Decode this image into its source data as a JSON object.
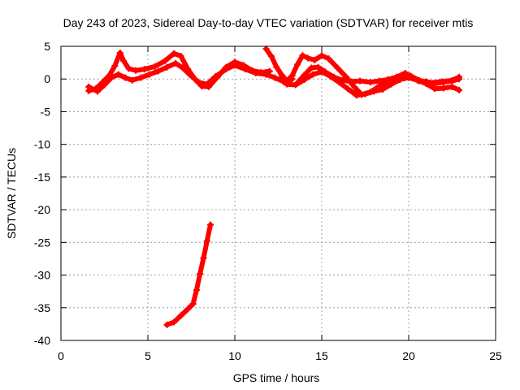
{
  "chart_data": {
    "type": "scatter",
    "title": "Day 243 of 2023, Sidereal Day-to-day VTEC variation (SDTVAR) for receiver mtis",
    "xlabel": "GPS time / hours",
    "ylabel": "SDTVAR / TECUs",
    "xlim": [
      0,
      25
    ],
    "ylim": [
      -40,
      5
    ],
    "x_ticks": [
      0,
      5,
      10,
      15,
      20,
      25
    ],
    "y_ticks": [
      5,
      0,
      -5,
      -10,
      -15,
      -20,
      -25,
      -30,
      -35,
      -40
    ],
    "grid": true,
    "marker_color": "#ff0000",
    "series": [
      {
        "name": "track-1",
        "points": [
          [
            1.6,
            -1.8
          ],
          [
            2.0,
            -1.5
          ],
          [
            2.4,
            -0.5
          ],
          [
            2.8,
            0.6
          ],
          [
            3.1,
            2.0
          ],
          [
            3.4,
            4.0
          ],
          [
            3.6,
            2.8
          ],
          [
            3.9,
            1.6
          ],
          [
            4.3,
            1.3
          ],
          [
            4.8,
            1.5
          ],
          [
            5.4,
            1.9
          ],
          [
            6.0,
            2.8
          ],
          [
            6.5,
            3.9
          ],
          [
            6.9,
            3.5
          ],
          [
            7.3,
            1.5
          ],
          [
            7.7,
            0.0
          ],
          [
            8.1,
            -1.1
          ],
          [
            8.5,
            -1.2
          ],
          [
            9.0,
            0.3
          ],
          [
            9.5,
            1.8
          ],
          [
            10.0,
            2.6
          ],
          [
            10.5,
            2.1
          ],
          [
            11.0,
            1.3
          ],
          [
            11.5,
            1.0
          ],
          [
            12.0,
            1.2
          ]
        ]
      },
      {
        "name": "track-2",
        "points": [
          [
            1.6,
            -1.2
          ],
          [
            2.1,
            -1.9
          ],
          [
            2.5,
            -0.9
          ],
          [
            2.9,
            0.2
          ],
          [
            3.3,
            0.7
          ],
          [
            3.7,
            0.2
          ],
          [
            4.1,
            -0.2
          ],
          [
            4.6,
            0.2
          ],
          [
            5.1,
            0.7
          ],
          [
            5.6,
            1.2
          ],
          [
            6.1,
            1.8
          ],
          [
            6.6,
            2.4
          ],
          [
            7.0,
            1.7
          ],
          [
            7.4,
            0.7
          ],
          [
            7.9,
            -0.5
          ],
          [
            8.4,
            -0.8
          ],
          [
            8.9,
            0.4
          ],
          [
            9.5,
            1.5
          ],
          [
            10.0,
            2.1
          ],
          [
            10.6,
            1.5
          ],
          [
            11.2,
            0.9
          ],
          [
            11.8,
            0.7
          ],
          [
            12.3,
            0.2
          ],
          [
            12.8,
            -0.4
          ],
          [
            13.3,
            0.0
          ]
        ]
      },
      {
        "name": "track-3",
        "points": [
          [
            11.8,
            4.6
          ],
          [
            12.1,
            3.5
          ],
          [
            12.4,
            1.8
          ],
          [
            12.7,
            0.6
          ],
          [
            13.0,
            -0.3
          ],
          [
            13.3,
            0.5
          ],
          [
            13.6,
            2.2
          ],
          [
            13.9,
            3.6
          ],
          [
            14.2,
            3.2
          ],
          [
            14.6,
            2.9
          ],
          [
            15.0,
            3.6
          ],
          [
            15.4,
            3.1
          ],
          [
            15.9,
            1.7
          ],
          [
            16.4,
            0.3
          ],
          [
            16.9,
            -1.3
          ],
          [
            17.3,
            -2.4
          ],
          [
            17.8,
            -2.0
          ],
          [
            18.2,
            -1.3
          ],
          [
            18.6,
            -0.6
          ],
          [
            19.1,
            0.0
          ],
          [
            19.6,
            0.6
          ],
          [
            20.1,
            0.5
          ],
          [
            20.6,
            -0.2
          ],
          [
            21.2,
            -0.6
          ],
          [
            21.9,
            -0.4
          ],
          [
            22.5,
            -0.2
          ],
          [
            22.9,
            0.3
          ]
        ]
      },
      {
        "name": "track-4",
        "points": [
          [
            12.6,
            0.0
          ],
          [
            13.0,
            -0.8
          ],
          [
            13.5,
            -0.9
          ],
          [
            14.0,
            -0.1
          ],
          [
            14.5,
            0.7
          ],
          [
            15.0,
            1.1
          ],
          [
            15.5,
            0.4
          ],
          [
            16.0,
            -0.5
          ],
          [
            16.5,
            -1.5
          ],
          [
            17.0,
            -2.5
          ],
          [
            17.5,
            -2.3
          ],
          [
            18.0,
            -1.9
          ],
          [
            18.5,
            -1.6
          ],
          [
            19.0,
            -0.8
          ],
          [
            19.5,
            -0.1
          ],
          [
            20.0,
            0.2
          ],
          [
            20.5,
            -0.2
          ],
          [
            21.0,
            -0.7
          ],
          [
            21.5,
            -1.5
          ],
          [
            22.0,
            -1.4
          ],
          [
            22.5,
            -1.2
          ],
          [
            22.9,
            -1.7
          ]
        ]
      },
      {
        "name": "track-5",
        "points": [
          [
            13.6,
            -0.6
          ],
          [
            14.0,
            0.6
          ],
          [
            14.4,
            1.7
          ],
          [
            14.8,
            1.8
          ],
          [
            15.2,
            1.1
          ],
          [
            15.7,
            0.3
          ],
          [
            16.2,
            -0.2
          ],
          [
            16.7,
            -0.4
          ],
          [
            17.2,
            -0.3
          ],
          [
            17.8,
            -0.5
          ],
          [
            18.3,
            -0.3
          ],
          [
            18.8,
            -0.1
          ],
          [
            19.3,
            0.3
          ],
          [
            19.8,
            0.9
          ],
          [
            20.2,
            0.3
          ],
          [
            20.6,
            -0.3
          ],
          [
            21.0,
            -0.4
          ],
          [
            21.5,
            -0.7
          ],
          [
            22.0,
            -0.5
          ],
          [
            22.5,
            -0.3
          ],
          [
            22.9,
            0.0
          ]
        ]
      },
      {
        "name": "track-6",
        "points": [
          [
            6.1,
            -37.6
          ],
          [
            6.5,
            -37.2
          ],
          [
            6.9,
            -36.2
          ],
          [
            7.3,
            -35.2
          ],
          [
            7.6,
            -34.4
          ],
          [
            7.8,
            -32.3
          ],
          [
            8.0,
            -29.8
          ],
          [
            8.2,
            -27.4
          ],
          [
            8.4,
            -24.8
          ],
          [
            8.6,
            -22.3
          ]
        ]
      }
    ]
  }
}
